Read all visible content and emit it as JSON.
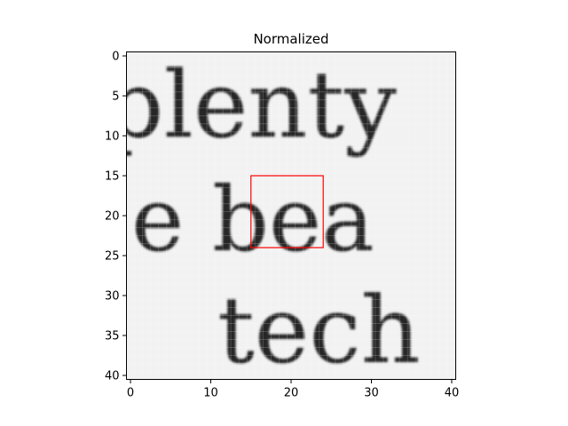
{
  "chart_data": {
    "type": "heatmap",
    "title": "Normalized",
    "xlabel": "",
    "ylabel": "",
    "xlim": [
      -0.5,
      40.5
    ],
    "ylim": [
      40.5,
      -0.5
    ],
    "x_ticks": [
      0,
      10,
      20,
      30,
      40
    ],
    "y_ticks": [
      0,
      5,
      10,
      15,
      20,
      25,
      30,
      35,
      40
    ],
    "x_tick_labels": [
      "0",
      "10",
      "20",
      "30",
      "40"
    ],
    "y_tick_labels": [
      "0",
      "5",
      "10",
      "15",
      "20",
      "25",
      "30",
      "35",
      "40"
    ],
    "colormap": "gray",
    "grid": false,
    "image_content_text": [
      "plenty",
      "e bea",
      "tech"
    ],
    "highlight_box": {
      "x0": 15,
      "y0": 15,
      "x1": 24,
      "y1": 24,
      "color": "#ff0000"
    }
  }
}
